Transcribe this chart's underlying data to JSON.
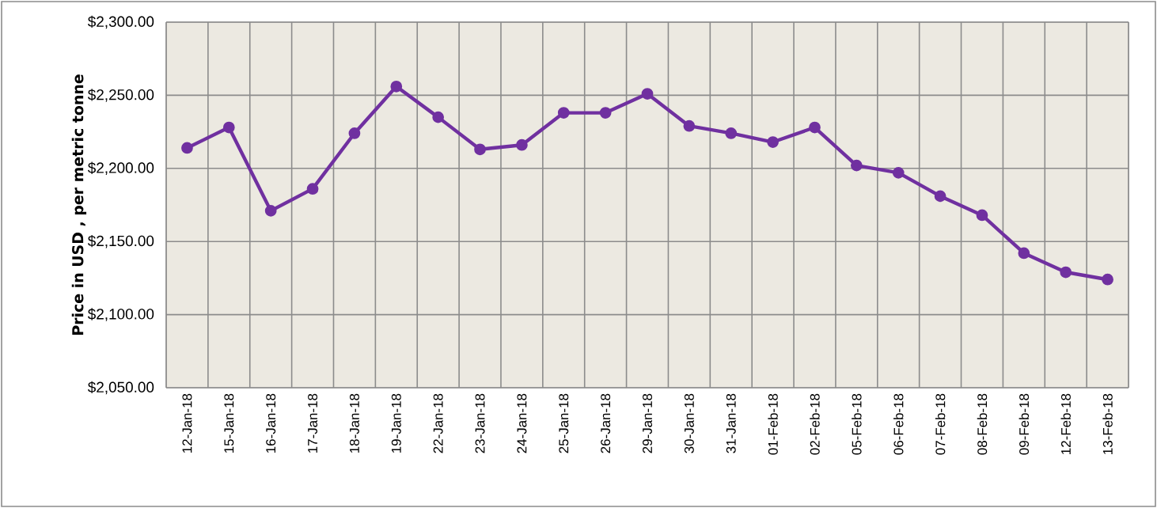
{
  "chart_data": {
    "type": "line",
    "ylabel": "Price in USD , per metric tonne",
    "categories": [
      "12-Jan-18",
      "15-Jan-18",
      "16-Jan-18",
      "17-Jan-18",
      "18-Jan-18",
      "19-Jan-18",
      "22-Jan-18",
      "23-Jan-18",
      "24-Jan-18",
      "25-Jan-18",
      "26-Jan-18",
      "29-Jan-18",
      "30-Jan-18",
      "31-Jan-18",
      "01-Feb-18",
      "02-Feb-18",
      "05-Feb-18",
      "06-Feb-18",
      "07-Feb-18",
      "08-Feb-18",
      "09-Feb-18",
      "12-Feb-18",
      "13-Feb-18"
    ],
    "series": [
      {
        "color": "#7030a0",
        "values": [
          2214,
          2228,
          2171,
          2186,
          2224,
          2256,
          2235,
          2213,
          2216,
          2238,
          2238,
          2251,
          2229,
          2224,
          2218,
          2228,
          2202,
          2197,
          2181,
          2168,
          2142,
          2129,
          2124
        ]
      }
    ],
    "ylim": [
      2050,
      2300
    ],
    "yticks": [
      {
        "value": 2050,
        "label": "$2,050.00"
      },
      {
        "value": 2100,
        "label": "$2,100.00"
      },
      {
        "value": 2150,
        "label": "$2,150.00"
      },
      {
        "value": 2200,
        "label": "$2,200.00"
      },
      {
        "value": 2250,
        "label": "$2,250.00"
      },
      {
        "value": 2300,
        "label": "$2,300.00"
      }
    ],
    "grid": true,
    "marker": "circle",
    "line_style": "solid"
  }
}
